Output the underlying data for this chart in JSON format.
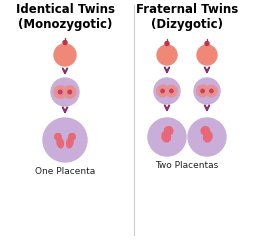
{
  "bg_color": "#ffffff",
  "border_color": "#dddddd",
  "title_left": "Identical Twins\n(Monozygotic)",
  "title_right": "Fraternal Twins\n(Dizygotic)",
  "label_left": "One Placenta",
  "label_right": "Two Placentas",
  "egg_color": "#f08878",
  "sperm_color": "#c0304a",
  "arrow_color": "#8b3070",
  "placenta_outer": "#c8aed8",
  "fetus_color": "#e86878",
  "cell_outer": "#c8aed8",
  "cell_inner": "#e89090",
  "cell_dot": "#c84060",
  "divider_color": "#cccccc",
  "title_fontsize": 8.5,
  "label_fontsize": 6.5
}
